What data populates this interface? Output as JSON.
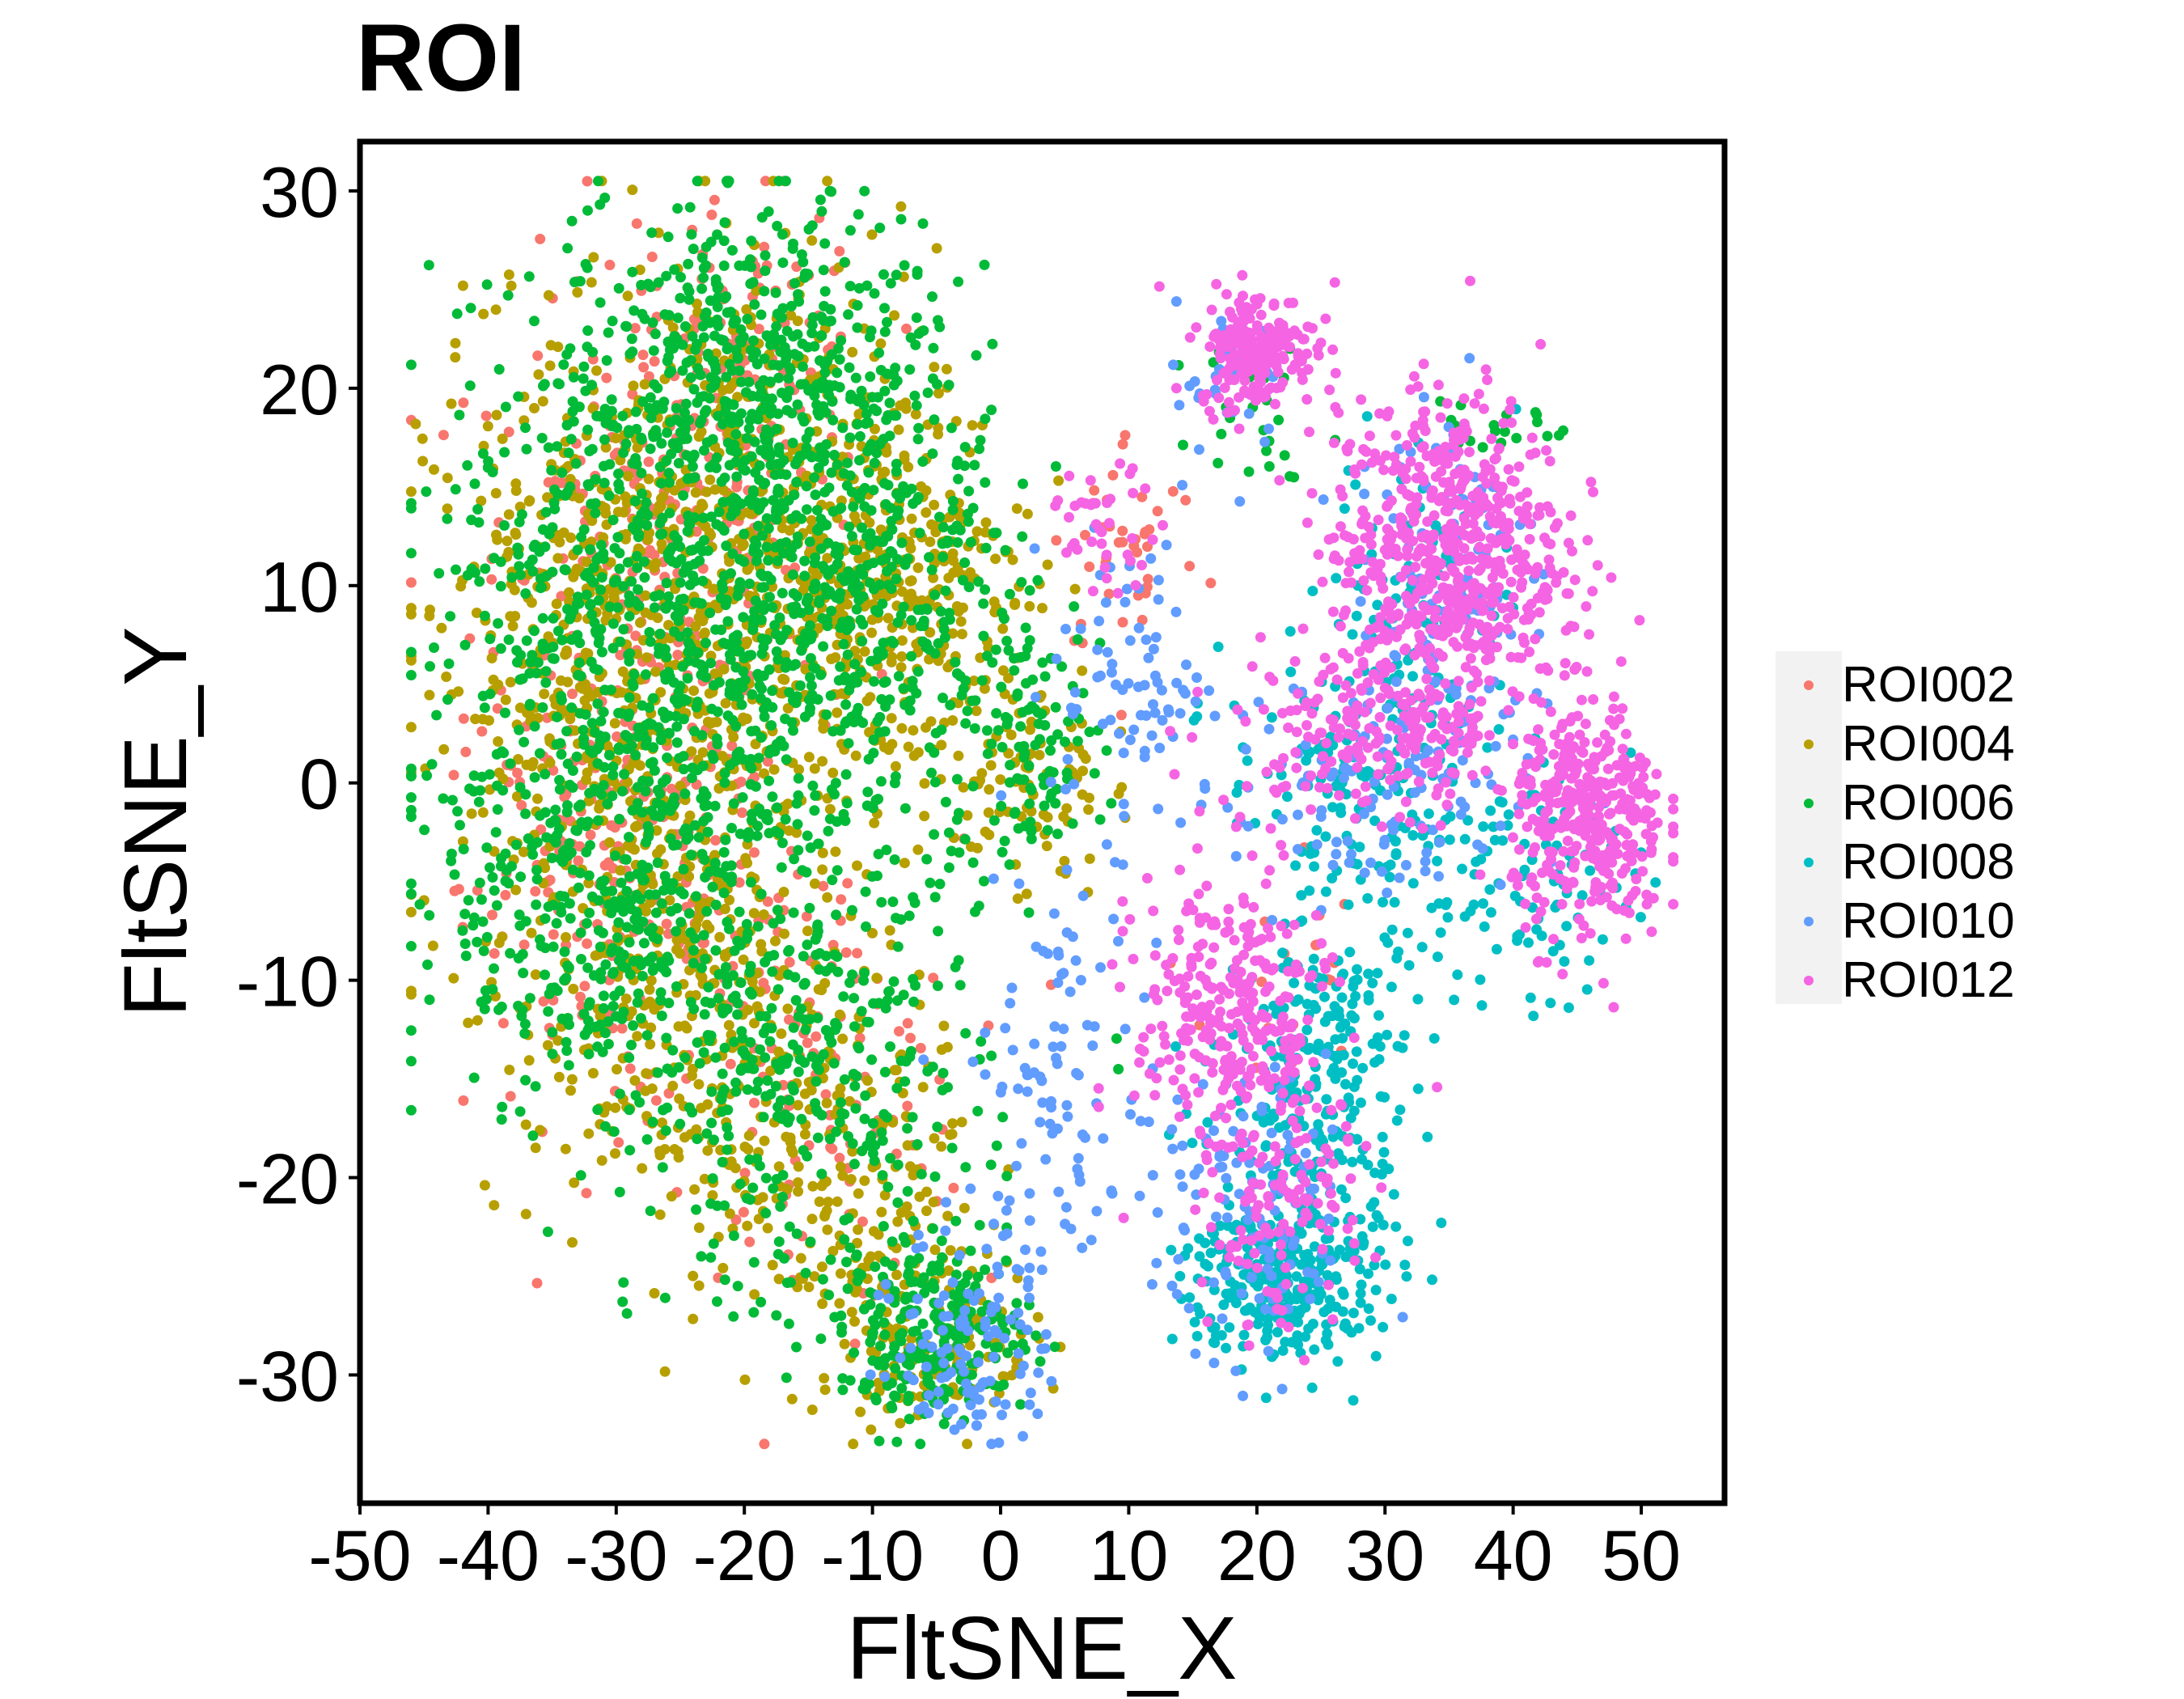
{
  "chart_data": {
    "type": "scatter",
    "title": "ROI",
    "xlabel": "FltSNE_X",
    "ylabel": "FltSNE_Y",
    "xlim": [
      -50,
      56.5
    ],
    "ylim": [
      -36.5,
      32.5
    ],
    "xticks": [
      -50,
      -40,
      -30,
      -20,
      -10,
      0,
      10,
      20,
      30,
      40,
      50
    ],
    "yticks": [
      -30,
      -20,
      -10,
      0,
      10,
      20,
      30
    ],
    "xtick_labels": [
      "-50",
      "-40",
      "-30",
      "-20",
      "-10",
      "0",
      "10",
      "20",
      "30",
      "40",
      "50"
    ],
    "ytick_labels": [
      "-30",
      "-20",
      "-10",
      "0",
      "10",
      "20",
      "30"
    ],
    "grid": false,
    "legend_position": "right",
    "series": [
      {
        "name": "ROI002",
        "color": "#F8766D",
        "clusters": [
          [
            -28,
            8,
            9,
            12,
            250
          ],
          [
            -30,
            -5,
            8,
            8,
            150
          ],
          [
            -20,
            20,
            7,
            6,
            120
          ],
          [
            -15,
            -15,
            8,
            8,
            120
          ],
          [
            10,
            12,
            4,
            4,
            40
          ],
          [
            22,
            -10,
            4,
            5,
            20
          ]
        ]
      },
      {
        "name": "ROI004",
        "color": "#B79F00",
        "clusters": [
          [
            -30,
            5,
            10,
            12,
            550
          ],
          [
            -20,
            12,
            10,
            10,
            450
          ],
          [
            -8,
            10,
            7,
            7,
            300
          ],
          [
            -25,
            -12,
            8,
            8,
            250
          ],
          [
            -12,
            -20,
            7,
            7,
            200
          ],
          [
            -5,
            -28,
            5,
            3,
            120
          ],
          [
            2,
            0,
            4,
            4,
            80
          ]
        ]
      },
      {
        "name": "ROI006",
        "color": "#00BA38",
        "clusters": [
          [
            -28,
            8,
            11,
            11,
            700
          ],
          [
            -18,
            20,
            9,
            6,
            500
          ],
          [
            -12,
            8,
            9,
            8,
            450
          ],
          [
            -30,
            -6,
            9,
            8,
            400
          ],
          [
            -15,
            -15,
            9,
            8,
            350
          ],
          [
            -5,
            -28,
            5,
            3,
            250
          ],
          [
            2,
            2,
            4,
            4,
            100
          ],
          [
            20,
            20,
            3,
            3,
            30
          ],
          [
            38,
            18,
            3,
            2,
            20
          ]
        ]
      },
      {
        "name": "ROI008",
        "color": "#00BFC4",
        "clusters": [
          [
            22,
            -25,
            5,
            3,
            300
          ],
          [
            25,
            -15,
            5,
            6,
            250
          ],
          [
            28,
            0,
            7,
            4,
            150
          ],
          [
            40,
            -5,
            6,
            4,
            100
          ],
          [
            33,
            10,
            5,
            5,
            80
          ]
        ]
      },
      {
        "name": "ROI010",
        "color": "#619CFF",
        "clusters": [
          [
            -2,
            -28,
            4,
            4,
            120
          ],
          [
            5,
            -15,
            5,
            7,
            100
          ],
          [
            20,
            -22,
            5,
            5,
            120
          ],
          [
            30,
            0,
            8,
            5,
            150
          ],
          [
            10,
            5,
            4,
            5,
            80
          ],
          [
            35,
            12,
            5,
            6,
            80
          ],
          [
            18,
            20,
            3,
            3,
            30
          ]
        ]
      },
      {
        "name": "ROI012",
        "color": "#F564E3",
        "clusters": [
          [
            20,
            22,
            3,
            2,
            200
          ],
          [
            35,
            12,
            6,
            5,
            600
          ],
          [
            46,
            -2,
            4,
            4,
            350
          ],
          [
            30,
            3,
            8,
            3,
            250
          ],
          [
            18,
            -12,
            5,
            5,
            300
          ],
          [
            22,
            -22,
            4,
            4,
            120
          ],
          [
            8,
            13,
            3,
            2,
            40
          ]
        ]
      }
    ]
  }
}
